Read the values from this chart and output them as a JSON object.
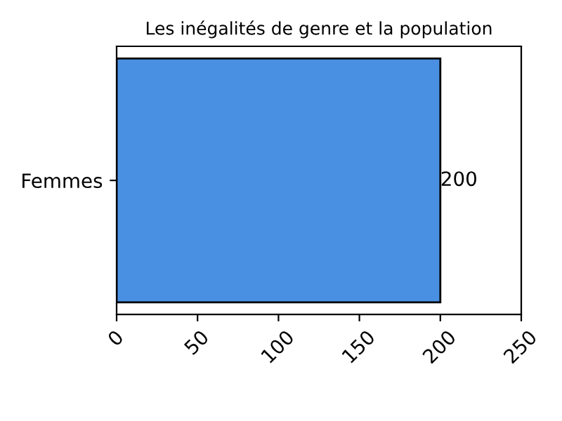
{
  "chart_data": {
    "type": "bar",
    "orientation": "horizontal",
    "title": "Les inégalités de genre et la population",
    "categories": [
      "Femmes"
    ],
    "values": [
      200
    ],
    "color": "#4a90e2",
    "xlim": [
      0,
      250
    ],
    "xticks": [
      0,
      50,
      100,
      150,
      200,
      250
    ],
    "data_labels": true,
    "grid": false
  }
}
